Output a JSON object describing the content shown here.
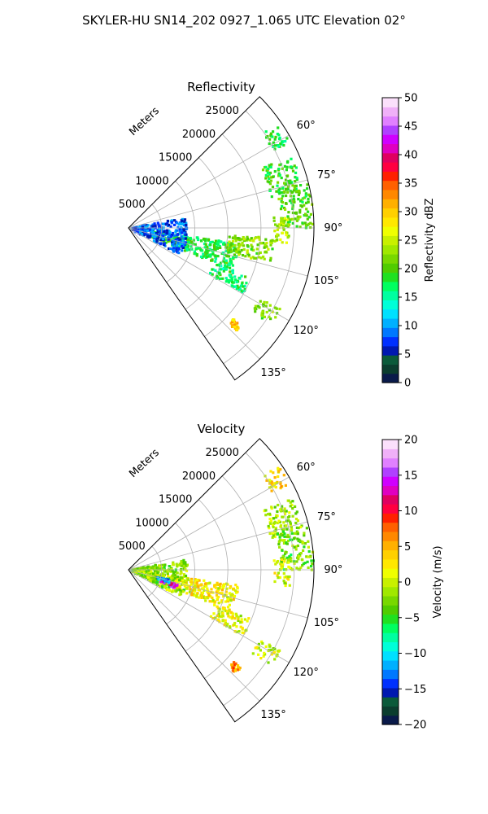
{
  "figure": {
    "suptitle": "SKYLER-HU  SN14_202  0927_1.065 UTC Elevation 02°"
  },
  "chart_data": [
    {
      "type": "heatmap",
      "projection": "polar-sector",
      "title": "Reflectivity",
      "radial_label": "Meters",
      "radial_ticks": [
        "5000",
        "10000",
        "15000",
        "20000",
        "25000"
      ],
      "radial_tick_values": [
        5000,
        10000,
        15000,
        20000,
        25000
      ],
      "range_max": 28000,
      "azimuth_range": [
        45,
        145
      ],
      "azimuth_ticks": [
        "60°",
        "75°",
        "90°",
        "105°",
        "120°",
        "135°"
      ],
      "azimuth_tick_values": [
        60,
        75,
        90,
        105,
        120,
        135
      ],
      "grid": true,
      "colorbar": {
        "label": "Reflectivity dBZ",
        "vmin": 0,
        "vmax": 50,
        "ticks": [
          "0",
          "5",
          "10",
          "15",
          "20",
          "25",
          "30",
          "35",
          "40",
          "45",
          "50"
        ],
        "colors": [
          "#0a1a4a",
          "#0b3d2e",
          "#0b5a3a",
          "#0018b0",
          "#0030ff",
          "#0078ff",
          "#00b0ff",
          "#00e0ff",
          "#00ffd8",
          "#00ffa0",
          "#00ff60",
          "#20e020",
          "#50cc00",
          "#78d800",
          "#a0e800",
          "#c8f000",
          "#f0ff00",
          "#ffe800",
          "#ffd000",
          "#ffb000",
          "#ff8800",
          "#ff6000",
          "#ff2000",
          "#ff0040",
          "#e00060",
          "#e000c0",
          "#d000ff",
          "#b040ff",
          "#e080ff",
          "#f0b0f8",
          "#fbe0fb"
        ]
      },
      "echo_regions": [
        {
          "az": [
            55,
            62
          ],
          "r": [
            24500,
            27500
          ],
          "value": 18
        },
        {
          "az": [
            66,
            78
          ],
          "r": [
            22000,
            27000
          ],
          "value": 19
        },
        {
          "az": [
            76,
            90
          ],
          "r": [
            23000,
            28000
          ],
          "value": 20
        },
        {
          "az": [
            86,
            96
          ],
          "r": [
            22000,
            24500
          ],
          "value": 24
        },
        {
          "az": [
            98,
            112
          ],
          "r": [
            3500,
            17000
          ],
          "value": 18
        },
        {
          "az": [
            112,
            120
          ],
          "r": [
            14000,
            20000
          ],
          "value": 17
        },
        {
          "az": [
            118,
            124
          ],
          "r": [
            22500,
            26000
          ],
          "value": 22
        },
        {
          "az": [
            131,
            134
          ],
          "r": [
            21000,
            22500
          ],
          "value": 30
        },
        {
          "az": [
            80,
            118
          ],
          "r": [
            300,
            9000
          ],
          "value": 8
        },
        {
          "az": [
            94,
            104
          ],
          "r": [
            15000,
            22000
          ],
          "value": 22
        }
      ]
    },
    {
      "type": "heatmap",
      "projection": "polar-sector",
      "title": "Velocity",
      "radial_label": "Meters",
      "radial_ticks": [
        "5000",
        "10000",
        "15000",
        "20000",
        "25000"
      ],
      "radial_tick_values": [
        5000,
        10000,
        15000,
        20000,
        25000
      ],
      "range_max": 28000,
      "azimuth_range": [
        45,
        145
      ],
      "azimuth_ticks": [
        "60°",
        "75°",
        "90°",
        "105°",
        "120°",
        "135°"
      ],
      "azimuth_tick_values": [
        60,
        75,
        90,
        105,
        120,
        135
      ],
      "grid": true,
      "colorbar": {
        "label": "Velocity (m/s)",
        "vmin": -20,
        "vmax": 20,
        "ticks": [
          "−20",
          "−15",
          "−10",
          "−5",
          "0",
          "5",
          "10",
          "15",
          "20"
        ],
        "colors": [
          "#0a1a4a",
          "#0b3d2e",
          "#0b5a3a",
          "#0018b0",
          "#0030ff",
          "#0078ff",
          "#00b0ff",
          "#00e0ff",
          "#00ffd8",
          "#00ffa0",
          "#00ff60",
          "#20e020",
          "#50cc00",
          "#78d800",
          "#a0e800",
          "#c8f000",
          "#f0ff00",
          "#ffe800",
          "#ffd000",
          "#ffb000",
          "#ff8800",
          "#ff6000",
          "#ff2000",
          "#ff0040",
          "#e00060",
          "#e000c0",
          "#d000ff",
          "#b040ff",
          "#e080ff",
          "#f0b0f8",
          "#fbe0fb"
        ]
      },
      "echo_regions": [
        {
          "az": [
            55,
            62
          ],
          "r": [
            24500,
            27500
          ],
          "value": 3
        },
        {
          "az": [
            66,
            78
          ],
          "r": [
            22000,
            27000
          ],
          "value": -1
        },
        {
          "az": [
            76,
            90
          ],
          "r": [
            23000,
            28000
          ],
          "value": -3
        },
        {
          "az": [
            86,
            96
          ],
          "r": [
            22000,
            24500
          ],
          "value": 1
        },
        {
          "az": [
            98,
            112
          ],
          "r": [
            3500,
            17000
          ],
          "value": 2
        },
        {
          "az": [
            112,
            120
          ],
          "r": [
            14000,
            20000
          ],
          "value": 1
        },
        {
          "az": [
            118,
            124
          ],
          "r": [
            22500,
            26000
          ],
          "value": 0
        },
        {
          "az": [
            131,
            134
          ],
          "r": [
            21000,
            22500
          ],
          "value": 6
        },
        {
          "az": [
            80,
            118
          ],
          "r": [
            300,
            9000
          ],
          "value": -2
        },
        {
          "az": [
            106,
            112
          ],
          "r": [
            5000,
            8000
          ],
          "value": 14
        },
        {
          "az": [
            104,
            108
          ],
          "r": [
            4500,
            6500
          ],
          "value": -13
        }
      ]
    }
  ]
}
